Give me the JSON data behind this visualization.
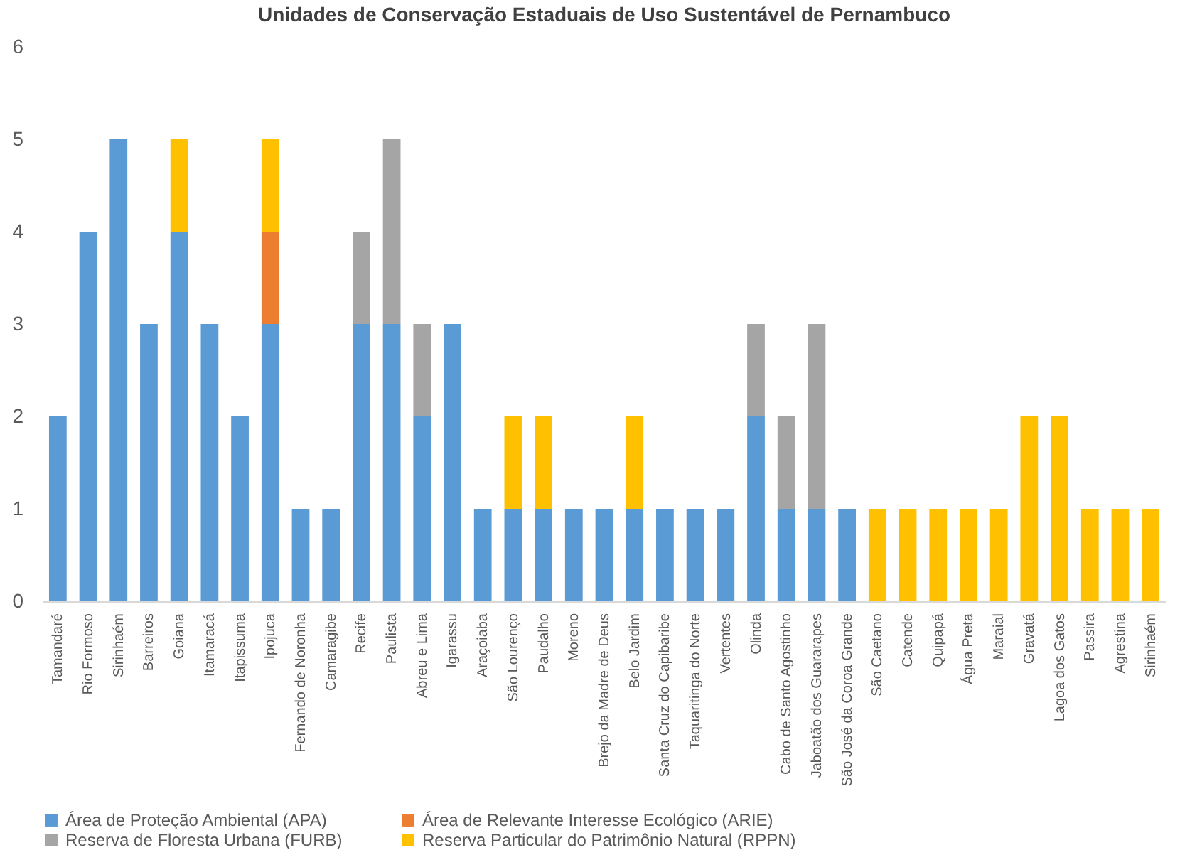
{
  "chart_data": {
    "type": "bar",
    "title": "Unidades de Conservação Estaduais de Uso Sustentável de Pernambuco",
    "stacked": true,
    "categories": [
      "Tamandaré",
      "Rio Formoso",
      "Sirinhaém",
      "Barreiros",
      "Goiana",
      "Itamaracá",
      "Itapissuma",
      "Ipojuca",
      "Fernando de Noronha",
      "Camaragibe",
      "Recife",
      "Paulista",
      "Abreu e Lima",
      "Igarassu",
      "Araçoiaba",
      "São Lourenço",
      "Paudalho",
      "Moreno",
      "Brejo da Madre de Deus",
      "Belo Jardim",
      "Santa Cruz do Capibaribe",
      "Taquaritinga do Norte",
      "Vertentes",
      "Olinda",
      "Cabo de Santo Agostinho",
      "Jaboatão dos Guararapes",
      "São José da Coroa Grande",
      "São Caetano",
      "Catende",
      "Quipapá",
      "Água Preta",
      "Maraial",
      "Gravatá",
      "Lagoa dos Gatos",
      "Passira",
      "Agrestina",
      "Sirinhaém"
    ],
    "series": [
      {
        "name": "Área de Proteção Ambiental (APA)",
        "color": "#5b9bd5",
        "values": [
          2,
          4,
          5,
          3,
          4,
          3,
          2,
          3,
          1,
          1,
          3,
          3,
          2,
          3,
          1,
          1,
          1,
          1,
          1,
          1,
          1,
          1,
          1,
          2,
          1,
          1,
          1,
          0,
          0,
          0,
          0,
          0,
          0,
          0,
          0,
          0,
          0
        ]
      },
      {
        "name": "Área de Relevante Interesse Ecológico (ARIE)",
        "color": "#ed7d31",
        "values": [
          0,
          0,
          0,
          0,
          0,
          0,
          0,
          1,
          0,
          0,
          0,
          0,
          0,
          0,
          0,
          0,
          0,
          0,
          0,
          0,
          0,
          0,
          0,
          0,
          0,
          0,
          0,
          0,
          0,
          0,
          0,
          0,
          0,
          0,
          0,
          0,
          0
        ]
      },
      {
        "name": "Reserva de Floresta Urbana (FURB)",
        "color": "#a5a5a5",
        "values": [
          0,
          0,
          0,
          0,
          0,
          0,
          0,
          0,
          0,
          0,
          1,
          2,
          1,
          0,
          0,
          0,
          0,
          0,
          0,
          0,
          0,
          0,
          0,
          1,
          1,
          2,
          0,
          0,
          0,
          0,
          0,
          0,
          0,
          0,
          0,
          0,
          0
        ]
      },
      {
        "name": "Reserva Particular do Patrimônio Natural (RPPN)",
        "color": "#ffc000",
        "values": [
          0,
          0,
          0,
          0,
          1,
          0,
          0,
          1,
          0,
          0,
          0,
          0,
          0,
          0,
          0,
          1,
          1,
          0,
          0,
          1,
          0,
          0,
          0,
          0,
          0,
          0,
          0,
          1,
          1,
          1,
          1,
          1,
          2,
          2,
          1,
          1,
          1
        ]
      }
    ],
    "ylim": [
      0,
      6
    ],
    "yticks": [
      0,
      1,
      2,
      3,
      4,
      5,
      6
    ],
    "grid": false,
    "legend": "bottom"
  }
}
